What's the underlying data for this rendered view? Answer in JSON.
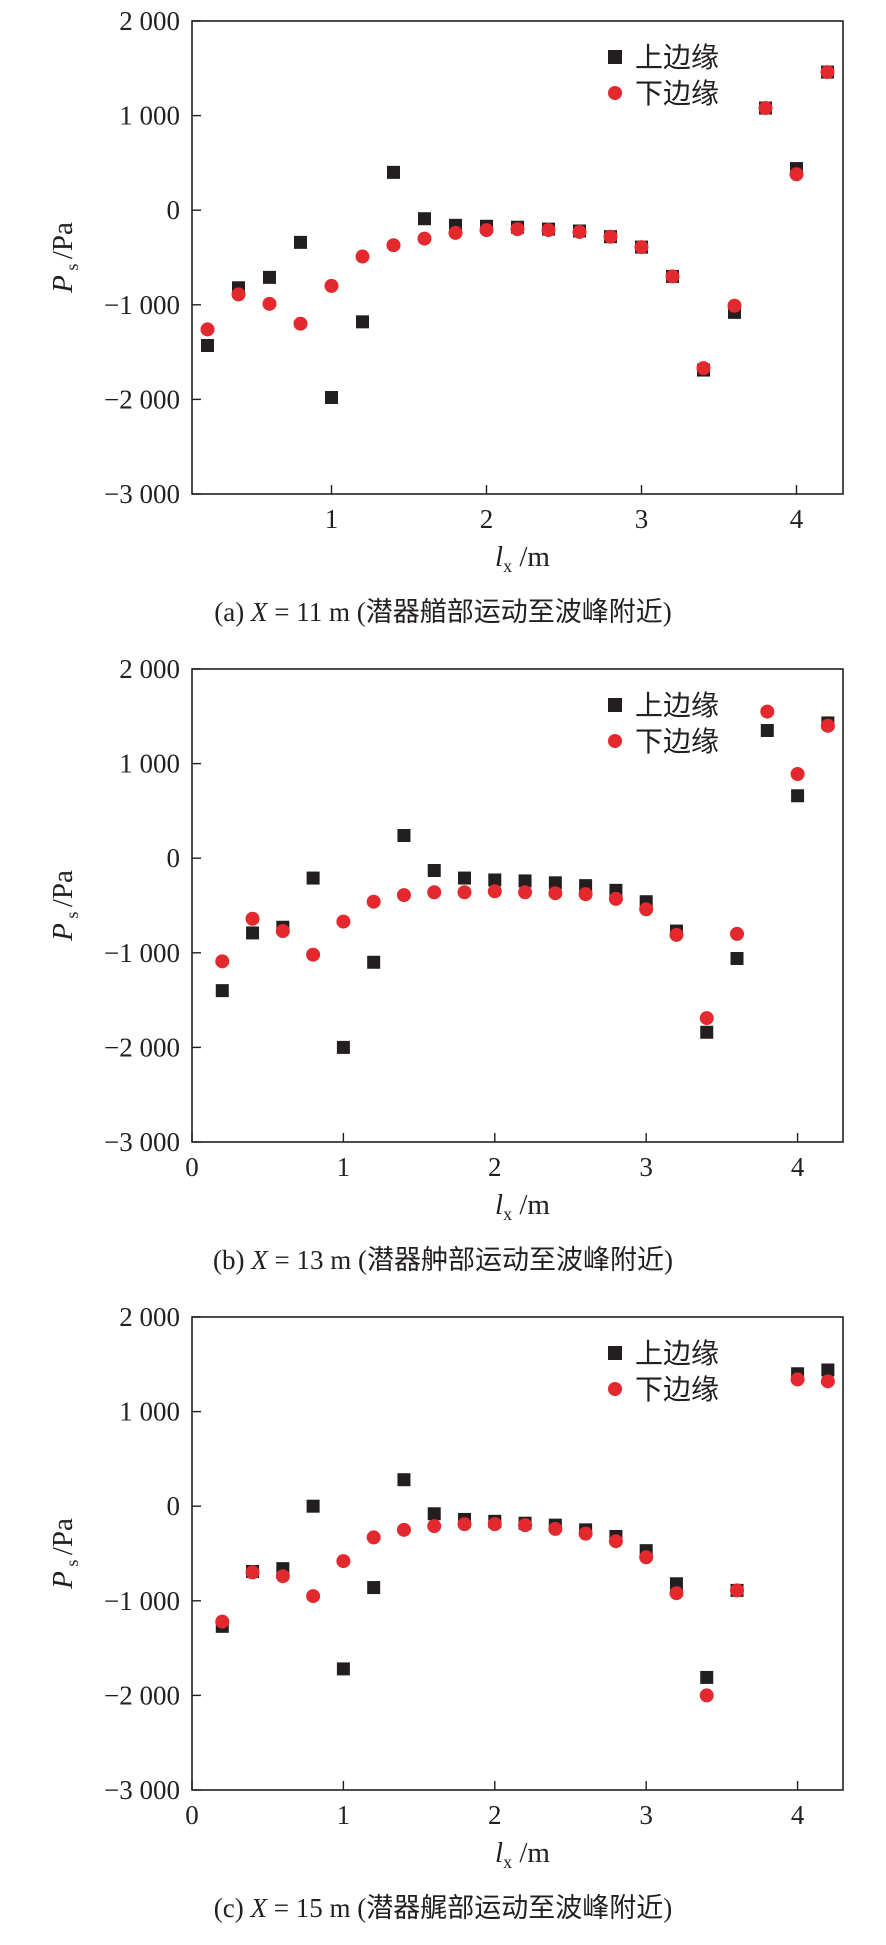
{
  "legend": {
    "upper": "上边缘",
    "lower": "下边缘"
  },
  "colors": {
    "upper": "#231f20",
    "lower": "#e3282e",
    "axis": "#231f20"
  },
  "axis_labels": {
    "y_main": "P",
    "y_sub": "s",
    "y_unit": "/Pa",
    "x_main": "l",
    "x_sub": "x",
    "x_unit": "/m"
  },
  "chart_data": [
    {
      "type": "scatter",
      "caption_prefix": "(a) ",
      "caption_var": "X",
      "caption_rest": " = 11 m (潜器艏部运动至波峰附近)",
      "xlim": [
        0.1,
        4.3
      ],
      "ylim": [
        -3000,
        2000
      ],
      "xticks": [
        "1",
        "2",
        "3",
        "4"
      ],
      "xtick_values": [
        1,
        2,
        3,
        4
      ],
      "yticks": [
        "2 000",
        "1 000",
        "0",
        "−1 000",
        "−2 000",
        "−3 000"
      ],
      "ytick_values": [
        2000,
        1000,
        0,
        -1000,
        -2000,
        -3000
      ],
      "legend_position": "top-right",
      "series": [
        {
          "name": "上边缘",
          "marker": "square",
          "x": [
            0.2,
            0.4,
            0.6,
            0.8,
            1.0,
            1.2,
            1.4,
            1.6,
            1.8,
            2.0,
            2.2,
            2.4,
            2.6,
            2.8,
            3.0,
            3.2,
            3.4,
            3.6,
            3.8,
            4.0,
            4.2
          ],
          "y": [
            -1430,
            -820,
            -710,
            -340,
            -1980,
            -1180,
            400,
            -90,
            -160,
            -170,
            -180,
            -200,
            -220,
            -280,
            -390,
            -700,
            -1690,
            -1080,
            1080,
            440,
            1460
          ]
        },
        {
          "name": "下边缘",
          "marker": "circle",
          "x": [
            0.2,
            0.4,
            0.6,
            0.8,
            1.0,
            1.2,
            1.4,
            1.6,
            1.8,
            2.0,
            2.2,
            2.4,
            2.6,
            2.8,
            3.0,
            3.2,
            3.4,
            3.6,
            3.8,
            4.0,
            4.2
          ],
          "y": [
            -1260,
            -890,
            -990,
            -1200,
            -800,
            -490,
            -370,
            -300,
            -240,
            -210,
            -200,
            -210,
            -230,
            -280,
            -390,
            -700,
            -1670,
            -1010,
            1080,
            380,
            1460
          ]
        }
      ]
    },
    {
      "type": "scatter",
      "caption_prefix": "(b) ",
      "caption_var": "X",
      "caption_rest": " = 13 m (潜器舯部运动至波峰附近)",
      "xlim": [
        0,
        4.3
      ],
      "ylim": [
        -3000,
        2000
      ],
      "xticks": [
        "0",
        "1",
        "2",
        "3",
        "4"
      ],
      "xtick_values": [
        0,
        1,
        2,
        3,
        4
      ],
      "yticks": [
        "2 000",
        "1 000",
        "0",
        "−1 000",
        "−2 000",
        "−3 000"
      ],
      "ytick_values": [
        2000,
        1000,
        0,
        -1000,
        -2000,
        -3000
      ],
      "legend_position": "top-right",
      "series": [
        {
          "name": "上边缘",
          "marker": "square",
          "x": [
            0.2,
            0.4,
            0.6,
            0.8,
            1.0,
            1.2,
            1.4,
            1.6,
            1.8,
            2.0,
            2.2,
            2.4,
            2.6,
            2.8,
            3.0,
            3.2,
            3.4,
            3.6,
            3.8,
            4.0,
            4.2
          ],
          "y": [
            -1400,
            -790,
            -730,
            -210,
            -2000,
            -1100,
            240,
            -130,
            -210,
            -230,
            -240,
            -260,
            -290,
            -340,
            -460,
            -770,
            -1840,
            -1060,
            1350,
            660,
            1430
          ]
        },
        {
          "name": "下边缘",
          "marker": "circle",
          "x": [
            0.2,
            0.4,
            0.6,
            0.8,
            1.0,
            1.2,
            1.4,
            1.6,
            1.8,
            2.0,
            2.2,
            2.4,
            2.6,
            2.8,
            3.0,
            3.2,
            3.4,
            3.6,
            3.8,
            4.0,
            4.2
          ],
          "y": [
            -1090,
            -640,
            -770,
            -1020,
            -670,
            -460,
            -390,
            -360,
            -360,
            -350,
            -360,
            -370,
            -380,
            -430,
            -540,
            -810,
            -1690,
            -800,
            1550,
            890,
            1400
          ]
        }
      ]
    },
    {
      "type": "scatter",
      "caption_prefix": "(c) ",
      "caption_var": "X",
      "caption_rest": " = 15 m (潜器艉部运动至波峰附近)",
      "xlim": [
        0,
        4.3
      ],
      "ylim": [
        -3000,
        2000
      ],
      "xticks": [
        "0",
        "1",
        "2",
        "3",
        "4"
      ],
      "xtick_values": [
        0,
        1,
        2,
        3,
        4
      ],
      "yticks": [
        "2 000",
        "1 000",
        "0",
        "−1 000",
        "−2 000",
        "−3 000"
      ],
      "ytick_values": [
        2000,
        1000,
        0,
        -1000,
        -2000,
        -3000
      ],
      "legend_position": "top-right",
      "series": [
        {
          "name": "上边缘",
          "marker": "square",
          "x": [
            0.2,
            0.4,
            0.6,
            0.8,
            1.0,
            1.2,
            1.4,
            1.6,
            1.8,
            2.0,
            2.2,
            2.4,
            2.6,
            2.8,
            3.0,
            3.2,
            3.4,
            3.6,
            4.0,
            4.2
          ],
          "y": [
            -1270,
            -690,
            -660,
            0,
            -1720,
            -860,
            280,
            -80,
            -140,
            -160,
            -180,
            -200,
            -250,
            -320,
            -470,
            -820,
            -1810,
            -890,
            1400,
            1440
          ]
        },
        {
          "name": "下边缘",
          "marker": "circle",
          "x": [
            0.2,
            0.4,
            0.6,
            0.8,
            1.0,
            1.2,
            1.4,
            1.6,
            1.8,
            2.0,
            2.2,
            2.4,
            2.6,
            2.8,
            3.0,
            3.2,
            3.4,
            3.6,
            4.0,
            4.2
          ],
          "y": [
            -1220,
            -700,
            -740,
            -950,
            -580,
            -330,
            -250,
            -210,
            -190,
            -190,
            -200,
            -240,
            -290,
            -370,
            -540,
            -920,
            -2000,
            -890,
            1340,
            1320
          ]
        }
      ]
    }
  ]
}
